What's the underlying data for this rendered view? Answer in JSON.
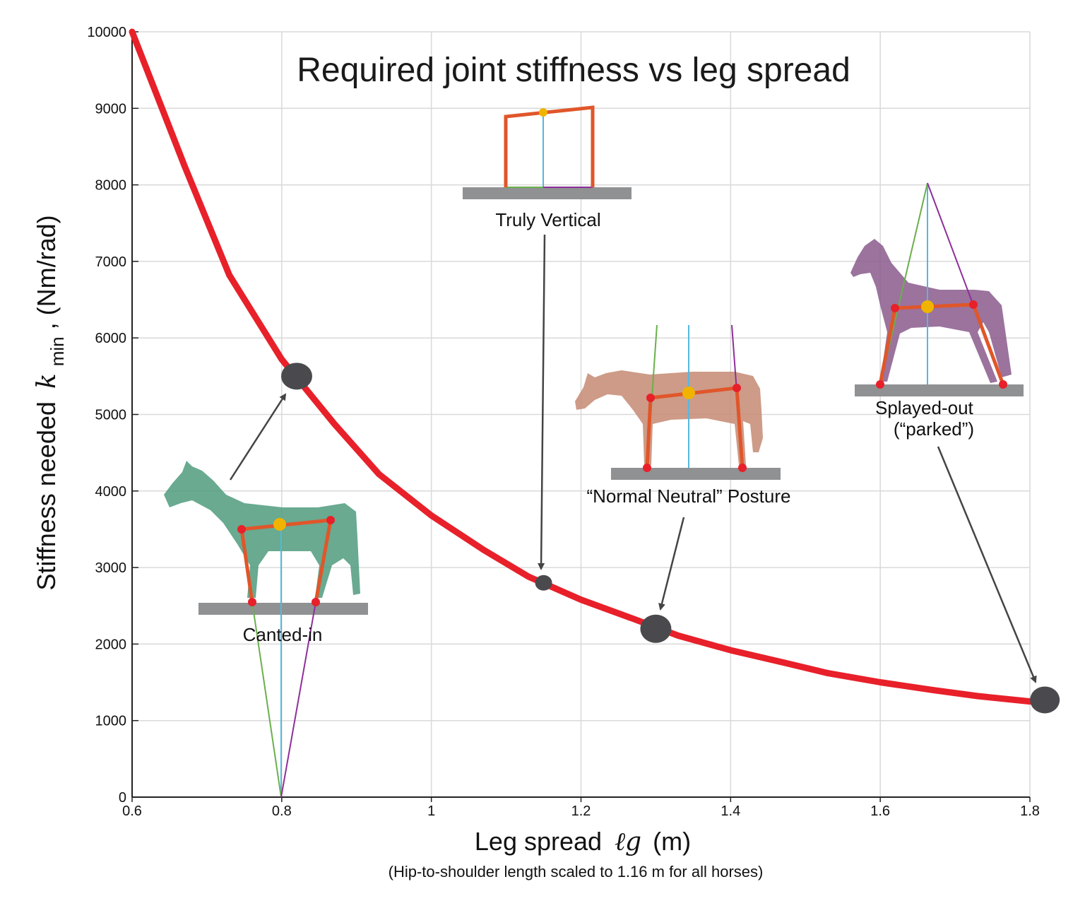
{
  "chart_data": {
    "type": "line",
    "title": "Required joint stiffness vs leg spread",
    "xlabel_prefix": "Leg spread",
    "xlabel_symbol": "ℓg",
    "xlabel_unit": "(m)",
    "xlabel_note": "(Hip-to-shoulder length scaled to 1.16 m for all horses)",
    "ylabel_prefix": "Stiffness needed",
    "ylabel_symbol": "k",
    "ylabel_subscript": "min",
    "ylabel_unit": ", (Nm/rad)",
    "xlim": [
      0.6,
      1.8
    ],
    "ylim": [
      0,
      10000
    ],
    "x_ticks": [
      0.6,
      0.8,
      1,
      1.2,
      1.4,
      1.6,
      1.8
    ],
    "x_tick_labels": [
      "0.6",
      "0.8",
      "1",
      "1.2",
      "1.4",
      "1.6",
      "1.8"
    ],
    "y_ticks": [
      0,
      1000,
      2000,
      3000,
      4000,
      5000,
      6000,
      7000,
      8000,
      9000,
      10000
    ],
    "y_tick_labels": [
      "0",
      "1000",
      "2000",
      "3000",
      "4000",
      "5000",
      "6000",
      "7000",
      "8000",
      "9000",
      "10000"
    ],
    "grid": true,
    "series": [
      {
        "color": "#e8202a",
        "x": [
          0.6,
          0.67,
          0.73,
          0.8,
          0.87,
          0.93,
          1.0,
          1.07,
          1.13,
          1.2,
          1.27,
          1.33,
          1.4,
          1.47,
          1.53,
          1.6,
          1.67,
          1.73,
          1.8
        ],
        "y": [
          10000,
          8250,
          6820,
          5720,
          4880,
          4220,
          3680,
          3230,
          2880,
          2580,
          2330,
          2110,
          1920,
          1760,
          1620,
          1500,
          1400,
          1320,
          1250
        ]
      }
    ],
    "highlighted_points": [
      {
        "label": "Canted-in",
        "x": 0.82,
        "y": 5500
      },
      {
        "label": "Truly Vertical",
        "x": 1.15,
        "y": 2800
      },
      {
        "label": "“Normal Neutral” Posture",
        "x": 1.3,
        "y": 2200
      },
      {
        "label": "Splayed-out\n(“parked”)",
        "x": 1.82,
        "y": 1270
      }
    ]
  },
  "colors": {
    "curve": "#e8202a",
    "marker": "#4a4a4e",
    "grid": "#d9d9d9",
    "leg_frame": "#e0562a",
    "ground": "#8f9193",
    "center_line": "#55b8e0",
    "left_line": "#6ab04c",
    "right_line": "#8e2f9a",
    "joint": "#e8202a",
    "com": "#f0b400",
    "horse_green": "#4f9b7c",
    "horse_tan": "#c48a72",
    "horse_purple": "#8a5a8c"
  }
}
